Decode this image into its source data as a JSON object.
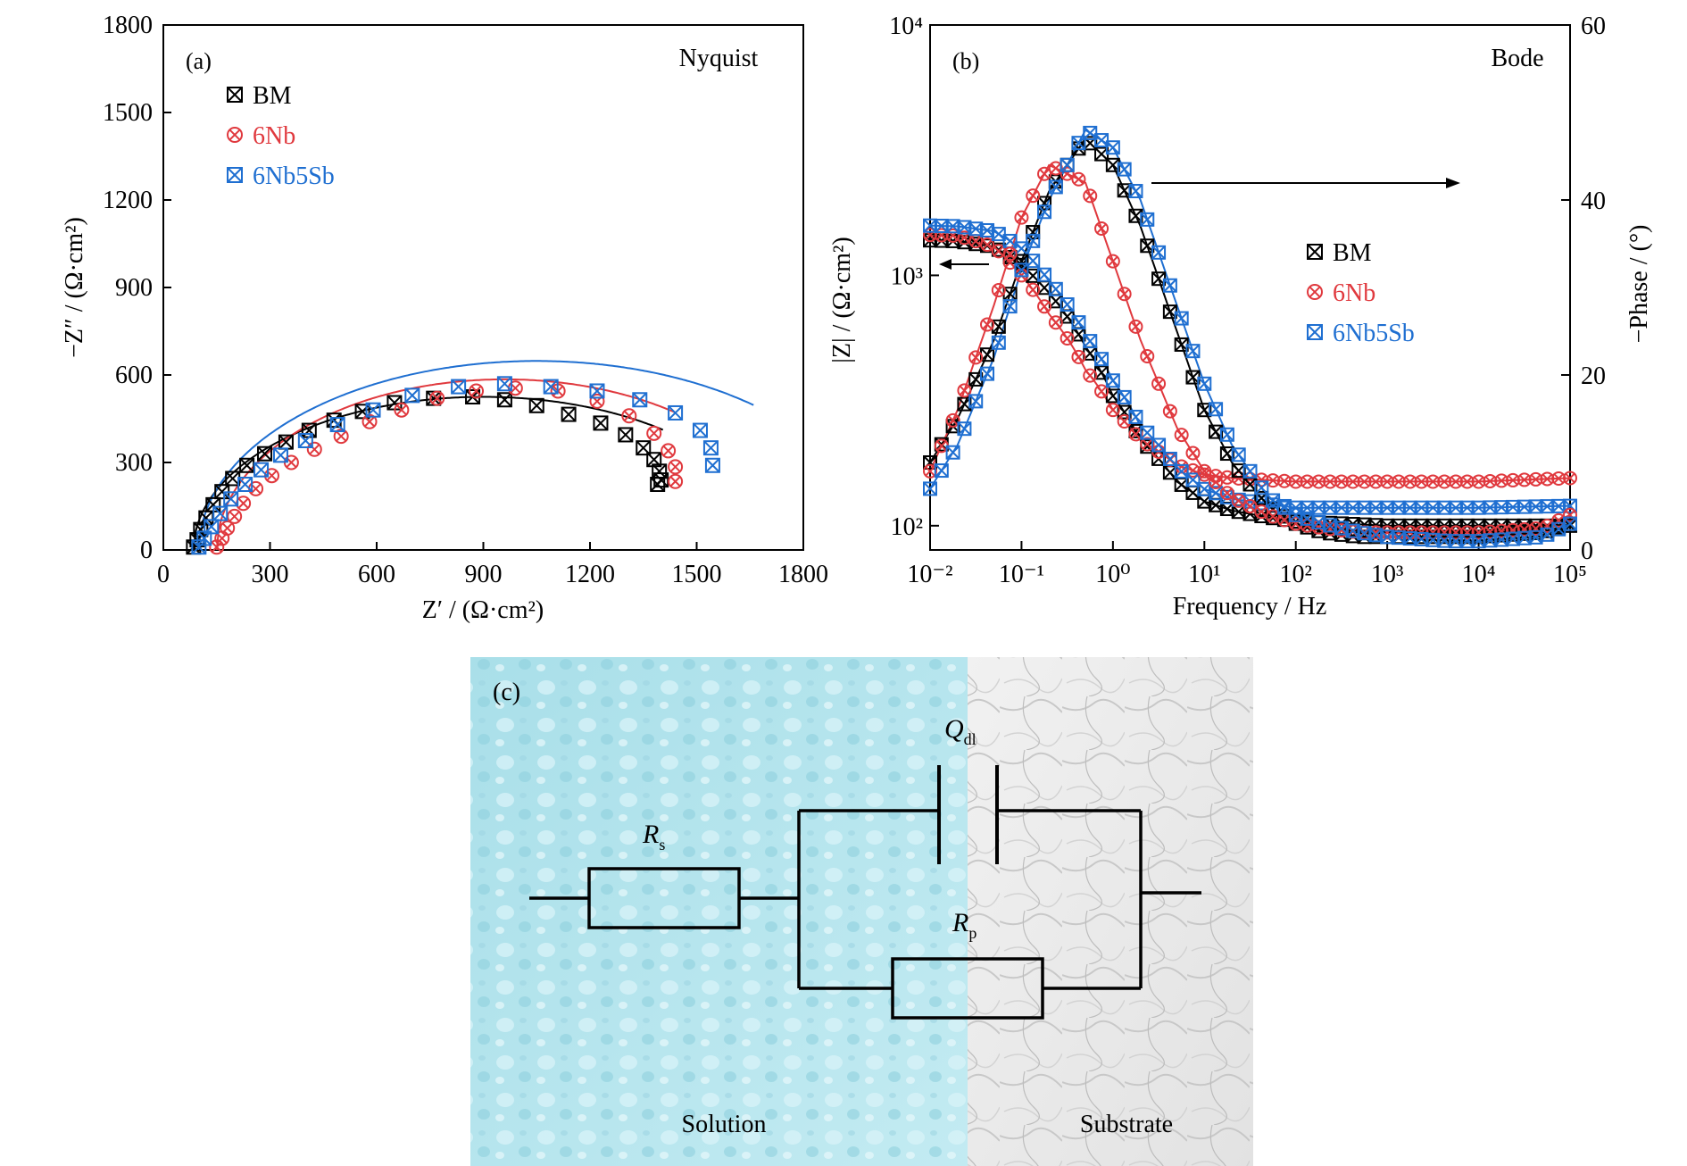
{
  "colors": {
    "BM": "#000000",
    "6Nb": "#e0393e",
    "6Nb5Sb": "#1f6fd1",
    "axis": "#000000"
  },
  "chart_data": [
    {
      "id": "a",
      "type": "scatter",
      "panel_label": "(a)",
      "title": "Nyquist",
      "xlabel": "Z′ / (Ω·cm²)",
      "ylabel": "−Z″ / (Ω·cm²)",
      "xlim": [
        0,
        1800
      ],
      "ylim": [
        0,
        1800
      ],
      "xticks": [
        "0",
        "300",
        "600",
        "900",
        "1200",
        "1500",
        "1800"
      ],
      "yticks": [
        "0",
        "300",
        "600",
        "900",
        "1200",
        "1500",
        "1800"
      ],
      "legend_position": "top-left",
      "series": [
        {
          "name": "BM",
          "marker": "boxed-x",
          "x": [
            85,
            95,
            105,
            120,
            140,
            165,
            195,
            235,
            285,
            345,
            410,
            480,
            560,
            650,
            760,
            870,
            960,
            1050,
            1140,
            1230,
            1300,
            1350,
            1380,
            1395,
            1400,
            1390
          ],
          "y": [
            10,
            35,
            70,
            110,
            155,
            200,
            245,
            290,
            330,
            370,
            410,
            445,
            475,
            505,
            520,
            525,
            515,
            495,
            465,
            435,
            395,
            350,
            310,
            270,
            240,
            225
          ],
          "fit": {
            "start": 85,
            "end": 1405,
            "peak": 525,
            "center": 900
          }
        },
        {
          "name": "6Nb",
          "marker": "circled-x",
          "x": [
            150,
            165,
            180,
            200,
            225,
            260,
            305,
            360,
            425,
            500,
            580,
            670,
            770,
            880,
            990,
            1110,
            1220,
            1310,
            1380,
            1420,
            1440,
            1440
          ],
          "y": [
            10,
            40,
            75,
            115,
            160,
            210,
            255,
            300,
            345,
            390,
            440,
            480,
            520,
            545,
            555,
            545,
            510,
            460,
            400,
            340,
            285,
            235
          ],
          "fit": {
            "start": 150,
            "end": 1445,
            "peak": 585,
            "center": 960
          }
        },
        {
          "name": "6Nb5Sb",
          "marker": "boxed-x",
          "x": [
            100,
            115,
            135,
            160,
            190,
            230,
            275,
            330,
            400,
            490,
            590,
            700,
            830,
            960,
            1090,
            1220,
            1340,
            1440,
            1510,
            1540,
            1545
          ],
          "y": [
            10,
            40,
            80,
            125,
            175,
            225,
            275,
            325,
            375,
            430,
            480,
            530,
            560,
            570,
            560,
            545,
            515,
            470,
            410,
            350,
            290
          ],
          "fit": {
            "start": 100,
            "end": 1665,
            "peak": 648,
            "center": 1050
          }
        }
      ]
    },
    {
      "id": "b",
      "type": "line",
      "panel_label": "(b)",
      "title": "Bode",
      "xlabel": "Frequency / Hz",
      "ylabel": "|Z| / (Ω·cm²)",
      "y2label": "−Phase / (°)",
      "xscale": "log",
      "yscale": "log",
      "xlim": [
        0.01,
        100000
      ],
      "ylim": [
        80,
        10000
      ],
      "y2lim": [
        0,
        60
      ],
      "xticks": [
        "10⁻²",
        "10⁻¹",
        "10⁰",
        "10¹",
        "10²",
        "10³",
        "10⁴",
        "10⁵"
      ],
      "yticks": [
        "10²",
        "10³",
        "10⁴"
      ],
      "y2ticks": [
        "0",
        "20",
        "40",
        "60"
      ],
      "legend_position": "right",
      "series": [
        {
          "name": "BM",
          "axis": "left",
          "metric": "|Z|",
          "x": [
            0.01,
            0.02,
            0.05,
            0.1,
            0.2,
            0.5,
            1,
            2,
            5,
            10,
            20,
            50,
            100,
            1000,
            10000,
            100000
          ],
          "y": [
            1380,
            1370,
            1300,
            1100,
            850,
            520,
            330,
            220,
            150,
            125,
            115,
            108,
            104,
            100,
            100,
            100
          ]
        },
        {
          "name": "6Nb",
          "axis": "left",
          "metric": "|Z|",
          "x": [
            0.01,
            0.02,
            0.05,
            0.1,
            0.2,
            0.5,
            1,
            2,
            5,
            10,
            20,
            50,
            100,
            1000,
            10000,
            100000
          ],
          "y": [
            1450,
            1440,
            1300,
            1000,
            700,
            420,
            290,
            220,
            175,
            160,
            155,
            152,
            150,
            150,
            150,
            155
          ]
        },
        {
          "name": "6Nb5Sb",
          "axis": "left",
          "metric": "|Z|",
          "x": [
            0.01,
            0.02,
            0.05,
            0.1,
            0.2,
            0.5,
            1,
            2,
            5,
            10,
            20,
            50,
            100,
            1000,
            10000,
            100000
          ],
          "y": [
            1580,
            1570,
            1500,
            1280,
            950,
            580,
            380,
            250,
            170,
            140,
            128,
            122,
            118,
            118,
            118,
            120
          ]
        },
        {
          "name": "BM",
          "axis": "right",
          "metric": "phase",
          "x": [
            0.01,
            0.02,
            0.05,
            0.1,
            0.2,
            0.5,
            1,
            2,
            5,
            10,
            20,
            50,
            100,
            200,
            500,
            1000,
            5000,
            10000,
            50000,
            100000
          ],
          "y": [
            10,
            15,
            24,
            33,
            41,
            47,
            44,
            37,
            25,
            16,
            10,
            5,
            3,
            2,
            1.5,
            1.5,
            1.5,
            1.5,
            2,
            3
          ]
        },
        {
          "name": "6Nb",
          "axis": "right",
          "metric": "phase",
          "x": [
            0.01,
            0.02,
            0.05,
            0.1,
            0.2,
            0.5,
            1,
            2,
            5,
            10,
            20,
            50,
            100,
            200,
            500,
            1000,
            5000,
            10000,
            50000,
            100000
          ],
          "y": [
            9,
            16,
            28,
            38,
            44,
            42,
            33,
            24,
            14,
            9,
            6,
            4,
            3,
            2.5,
            2,
            2,
            2,
            2,
            2.5,
            4
          ]
        },
        {
          "name": "6Nb5Sb",
          "axis": "right",
          "metric": "phase",
          "x": [
            0.01,
            0.02,
            0.05,
            0.1,
            0.2,
            0.5,
            1,
            2,
            5,
            10,
            20,
            50,
            100,
            200,
            500,
            1000,
            5000,
            10000,
            50000,
            100000
          ],
          "y": [
            7,
            12,
            22,
            32,
            40,
            48,
            46,
            40,
            28,
            19,
            12,
            6,
            4,
            3,
            2,
            1.5,
            1,
            1,
            1.5,
            3
          ]
        }
      ]
    }
  ],
  "panel_c": {
    "label": "(c)",
    "solution": "Solution",
    "substrate": "Substrate",
    "rs_main": "R",
    "rs_sub": "s",
    "q_main": "Q",
    "q_sub": "dl",
    "rp_main": "R",
    "rp_sub": "p"
  }
}
